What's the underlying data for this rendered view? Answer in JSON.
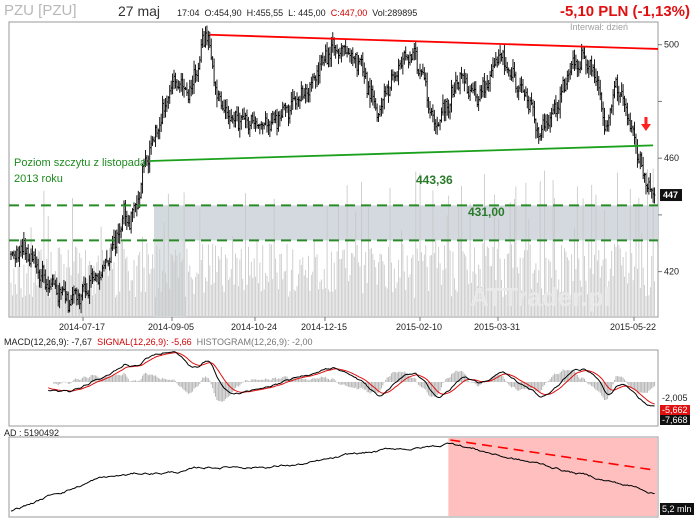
{
  "header": {
    "ticker": "PZU [PZU]",
    "date": "27 maj",
    "time": "17:04",
    "open": "O:454,90",
    "high": "H:455,55",
    "low": "L: 445,00",
    "close": "C:447,00",
    "volume": "Vol:289895",
    "change": "-5,10 PLN (-1,13%)",
    "interval": "Interwał: dzień",
    "watermark": "ATTrader.pl"
  },
  "colors": {
    "price": "#000000",
    "volume": "#c8c8c8",
    "resistance": "#ff0000",
    "support_trend": "#1aa01a",
    "levels": "#2a8a2a",
    "zone": "#d3d9de",
    "macd": "#000000",
    "signal": "#e01010",
    "histogram": "#b4b4b4",
    "ad_highlight": "#ffb8b8",
    "arrow": "#ff2020"
  },
  "chart_data": [
    {
      "type": "candlestick",
      "panel": "price",
      "x_ticks": [
        "2014-07-17",
        "2014-09-05",
        "2014-10-24",
        "2014-12-15",
        "2015-02-10",
        "2015-03-31",
        "2015-05-22"
      ],
      "y_ticks": [
        420,
        440,
        460,
        480,
        500
      ],
      "y_tick_labels": [
        "420",
        "",
        "460",
        "",
        "500"
      ],
      "ylim": [
        404,
        508
      ],
      "last_price_label": "447",
      "price_path": [
        [
          0,
          425
        ],
        [
          8,
          428
        ],
        [
          16,
          424
        ],
        [
          25,
          415
        ],
        [
          32,
          413
        ],
        [
          40,
          410
        ],
        [
          48,
          412
        ],
        [
          58,
          418
        ],
        [
          68,
          423
        ],
        [
          74,
          432
        ],
        [
          79,
          440
        ],
        [
          84,
          438
        ],
        [
          88,
          444
        ],
        [
          94,
          458
        ],
        [
          100,
          467
        ],
        [
          106,
          476
        ],
        [
          112,
          484
        ],
        [
          118,
          488
        ],
        [
          124,
          482
        ],
        [
          129,
          490
        ],
        [
          134,
          500
        ],
        [
          138,
          503
        ],
        [
          142,
          487
        ],
        [
          148,
          478
        ],
        [
          156,
          474
        ],
        [
          166,
          473
        ],
        [
          176,
          471
        ],
        [
          186,
          474
        ],
        [
          196,
          478
        ],
        [
          208,
          484
        ],
        [
          218,
          494
        ],
        [
          226,
          500
        ],
        [
          236,
          497
        ],
        [
          244,
          494
        ],
        [
          250,
          485
        ],
        [
          256,
          476
        ],
        [
          264,
          485
        ],
        [
          272,
          493
        ],
        [
          282,
          497
        ],
        [
          290,
          485
        ],
        [
          296,
          472
        ],
        [
          304,
          478
        ],
        [
          310,
          484
        ],
        [
          314,
          490
        ],
        [
          320,
          485
        ],
        [
          326,
          480
        ],
        [
          332,
          486
        ],
        [
          340,
          496
        ],
        [
          346,
          493
        ],
        [
          352,
          487
        ],
        [
          356,
          485
        ],
        [
          362,
          480
        ],
        [
          366,
          473
        ],
        [
          370,
          468
        ],
        [
          375,
          472
        ],
        [
          380,
          476
        ],
        [
          386,
          484
        ],
        [
          392,
          493
        ],
        [
          398,
          494
        ],
        [
          402,
          496
        ],
        [
          406,
          492
        ],
        [
          410,
          487
        ],
        [
          415,
          470
        ],
        [
          419,
          475
        ],
        [
          423,
          486
        ],
        [
          428,
          482
        ],
        [
          433,
          470
        ],
        [
          438,
          462
        ],
        [
          442,
          455
        ],
        [
          447,
          449
        ],
        [
          450,
          447
        ]
      ],
      "volume_ylim": [
        0,
        1000
      ],
      "volume_seed": 17,
      "annotations": [
        {
          "text": "Poziom szczytu z listopada",
          "line2": "2013 roku",
          "type": "note"
        },
        {
          "text": "443,36",
          "type": "level",
          "value": 443.36
        },
        {
          "text": "431,00",
          "type": "level",
          "value": 431.0
        },
        {
          "type": "resistance_line",
          "from": [
            139,
            503.5
          ],
          "to": [
            458,
            498.5
          ]
        },
        {
          "type": "trend_line",
          "from": [
            97,
            459
          ],
          "to": [
            449,
            464.5
          ]
        }
      ]
    },
    {
      "type": "line",
      "panel": "macd",
      "title": "MACD(12,26,9): -7,67",
      "signal_label": "SIGNAL(12,26,9): -5,66",
      "histogram_label": "HISTOGRAM(12,26,9): -2,00",
      "y_tick_labels": [
        "-2,005",
        "-5,662",
        "-7,668"
      ],
      "ylim": [
        -14,
        10
      ]
    },
    {
      "type": "line",
      "panel": "ad",
      "title": "AD : 5190492",
      "last_label": "5,2 mln",
      "highlight_start_index": 310
    }
  ]
}
